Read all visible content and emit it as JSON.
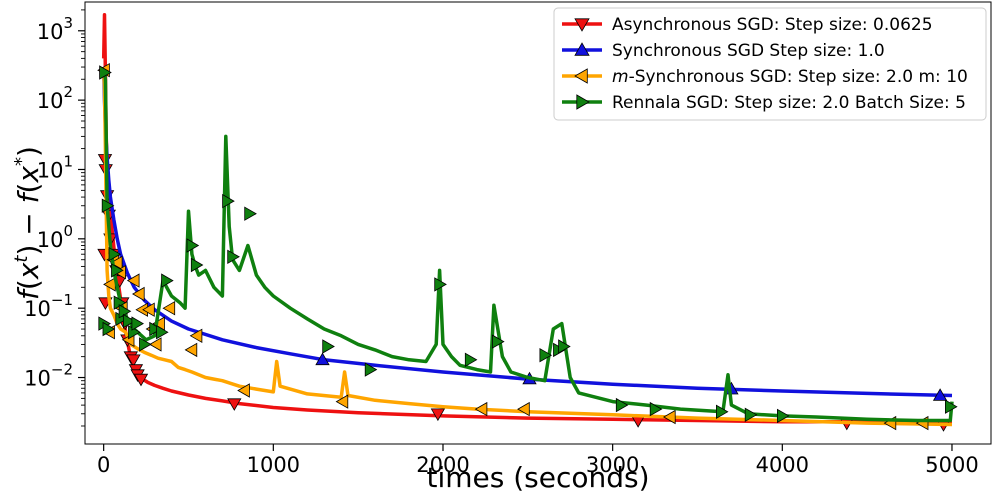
{
  "chart_data": {
    "type": "line",
    "title": "",
    "xlabel": "times (seconds)",
    "ylabel": "f(x^t) − f(x^*)",
    "xlim": [
      -110,
      5230
    ],
    "ylim": [
      0.0011,
      2600
    ],
    "yscale": "log",
    "grid": false,
    "legend_position": "top-right",
    "x_ticks": [
      {
        "value": 0,
        "label": "0"
      },
      {
        "value": 1000,
        "label": "1000"
      },
      {
        "value": 2000,
        "label": "2000"
      },
      {
        "value": 3000,
        "label": "3000"
      },
      {
        "value": 4000,
        "label": "4000"
      },
      {
        "value": 5000,
        "label": "5000"
      }
    ],
    "y_ticks": [
      {
        "value": 0.01,
        "base": "10",
        "exp": "−2"
      },
      {
        "value": 0.1,
        "base": "10",
        "exp": "−1"
      },
      {
        "value": 1,
        "base": "10",
        "exp": "0"
      },
      {
        "value": 10,
        "base": "10",
        "exp": "1"
      },
      {
        "value": 100,
        "base": "10",
        "exp": "2"
      },
      {
        "value": 1000,
        "base": "10",
        "exp": "3"
      }
    ],
    "series": [
      {
        "name": "Asynchronous SGD: Step size: 0.0625",
        "color": "#ee1111",
        "marker": "triangle-down",
        "x": [
          0,
          5,
          10,
          15,
          20,
          30,
          40,
          55,
          70,
          90,
          110,
          130,
          150,
          170,
          190,
          210,
          230,
          260,
          300,
          350,
          400,
          500,
          600,
          700,
          800,
          1000,
          1200,
          1500,
          2000,
          2500,
          3000,
          3500,
          4000,
          4500,
          5000
        ],
        "y": [
          400,
          1700,
          250,
          30,
          12,
          5,
          2.4,
          1.0,
          0.45,
          0.2,
          0.09,
          0.045,
          0.025,
          0.016,
          0.012,
          0.0105,
          0.0095,
          0.0085,
          0.0077,
          0.007,
          0.0064,
          0.0056,
          0.005,
          0.0046,
          0.0042,
          0.0037,
          0.0034,
          0.0031,
          0.0028,
          0.0026,
          0.0025,
          0.0024,
          0.0023,
          0.0023,
          0.0022
        ],
        "markers": [
          [
            5,
            0.6
          ],
          [
            8,
            14
          ],
          [
            10,
            0.12
          ],
          [
            12,
            10
          ],
          [
            20,
            4.2
          ],
          [
            30,
            2.2
          ],
          [
            40,
            1.0
          ],
          [
            55,
            0.6
          ],
          [
            75,
            0.35
          ],
          [
            95,
            0.25
          ],
          [
            110,
            0.12
          ],
          [
            125,
            0.06
          ],
          [
            140,
            0.035
          ],
          [
            160,
            0.02
          ],
          [
            175,
            0.018
          ],
          [
            190,
            0.013
          ],
          [
            200,
            0.011
          ],
          [
            220,
            0.0095
          ],
          [
            770,
            0.0042
          ],
          [
            1970,
            0.003
          ],
          [
            3150,
            0.0024
          ],
          [
            4380,
            0.0022
          ],
          [
            4950,
            0.0021
          ]
        ]
      },
      {
        "name": "Synchronous SGD Step size: 1.0",
        "color": "#1111dd",
        "marker": "triangle-up",
        "x": [
          0,
          5,
          10,
          20,
          30,
          40,
          60,
          80,
          100,
          140,
          180,
          240,
          300,
          400,
          500,
          700,
          900,
          1100,
          1300,
          1600,
          2000,
          2500,
          3000,
          3500,
          4000,
          4500,
          5000
        ],
        "y": [
          300,
          100,
          40,
          15,
          7,
          4,
          1.9,
          1.0,
          0.6,
          0.32,
          0.2,
          0.13,
          0.095,
          0.065,
          0.05,
          0.035,
          0.027,
          0.022,
          0.018,
          0.015,
          0.012,
          0.0095,
          0.008,
          0.007,
          0.0064,
          0.0059,
          0.0055
        ],
        "markers": [
          [
            1290,
            0.018
          ],
          [
            2510,
            0.0095
          ],
          [
            3700,
            0.0068
          ],
          [
            4930,
            0.0055
          ]
        ]
      },
      {
        "name": "m-Synchronous  SGD: Step size: 2.0 m: 10",
        "color": "#ffa500",
        "marker": "triangle-left",
        "x": [
          0,
          5,
          10,
          15,
          20,
          30,
          40,
          60,
          80,
          100,
          130,
          160,
          200,
          240,
          280,
          320,
          360,
          400,
          440,
          480,
          520,
          560,
          600,
          650,
          700,
          800,
          900,
          1000,
          1020,
          1040,
          1200,
          1400,
          1420,
          1440,
          1600,
          1800,
          2000,
          2200,
          2500,
          3000,
          3500,
          4000,
          4500,
          5000
        ],
        "y": [
          280,
          150,
          20,
          3,
          0.35,
          0.15,
          0.1,
          0.08,
          0.06,
          0.05,
          0.045,
          0.03,
          0.026,
          0.023,
          0.021,
          0.019,
          0.018,
          0.017,
          0.014,
          0.013,
          0.012,
          0.011,
          0.01,
          0.0095,
          0.009,
          0.0075,
          0.0068,
          0.0062,
          0.017,
          0.0075,
          0.0058,
          0.0052,
          0.012,
          0.0055,
          0.0047,
          0.0042,
          0.0038,
          0.0035,
          0.0032,
          0.0029,
          0.0026,
          0.0024,
          0.0022,
          0.0021
        ],
        "markers": [
          [
            5,
            270
          ],
          [
            35,
            0.045
          ],
          [
            40,
            0.22
          ],
          [
            60,
            0.5
          ],
          [
            80,
            0.45
          ],
          [
            100,
            0.33
          ],
          [
            110,
            0.1
          ],
          [
            150,
            0.035
          ],
          [
            180,
            0.25
          ],
          [
            210,
            0.16
          ],
          [
            230,
            0.095
          ],
          [
            270,
            0.095
          ],
          [
            290,
            0.05
          ],
          [
            310,
            0.03
          ],
          [
            330,
            0.06
          ],
          [
            390,
            0.1
          ],
          [
            520,
            0.025
          ],
          [
            550,
            0.04
          ],
          [
            830,
            0.0065
          ],
          [
            1410,
            0.0045
          ],
          [
            2230,
            0.0035
          ],
          [
            2480,
            0.0035
          ],
          [
            3340,
            0.0027
          ],
          [
            4640,
            0.0022
          ],
          [
            4830,
            0.0022
          ]
        ]
      },
      {
        "name": "Rennala SGD: Step size: 2.0 Batch Size: 5",
        "color": "#0f800f",
        "marker": "triangle-right",
        "x": [
          0,
          5,
          10,
          15,
          20,
          40,
          60,
          80,
          100,
          120,
          140,
          160,
          180,
          200,
          250,
          300,
          350,
          400,
          450,
          480,
          500,
          520,
          540,
          560,
          600,
          650,
          700,
          720,
          740,
          760,
          800,
          850,
          900,
          950,
          1000,
          1100,
          1200,
          1300,
          1400,
          1500,
          1600,
          1700,
          1800,
          1900,
          1960,
          1980,
          2000,
          2050,
          2100,
          2200,
          2280,
          2300,
          2350,
          2400,
          2500,
          2600,
          2650,
          2700,
          2750,
          2800,
          3000,
          3200,
          3400,
          3650,
          3680,
          3700,
          3800,
          4000,
          4200,
          4500,
          4800,
          4990,
          5000
        ],
        "y": [
          250,
          250,
          200,
          30,
          3,
          0.8,
          0.35,
          0.2,
          0.12,
          0.09,
          0.07,
          0.06,
          0.05,
          0.045,
          0.035,
          0.04,
          0.25,
          0.15,
          0.12,
          0.1,
          2.5,
          0.6,
          0.4,
          0.3,
          0.35,
          0.2,
          0.15,
          30,
          1.5,
          0.5,
          0.35,
          0.8,
          0.3,
          0.2,
          0.15,
          0.1,
          0.07,
          0.05,
          0.04,
          0.03,
          0.025,
          0.02,
          0.018,
          0.017,
          0.03,
          0.35,
          0.03,
          0.02,
          0.015,
          0.013,
          0.012,
          0.11,
          0.02,
          0.012,
          0.01,
          0.009,
          0.05,
          0.06,
          0.01,
          0.006,
          0.0045,
          0.004,
          0.0035,
          0.0032,
          0.011,
          0.004,
          0.003,
          0.0028,
          0.0027,
          0.0025,
          0.0024,
          0.0024,
          0.0045
        ],
        "markers": [
          [
            0,
            0.06
          ],
          [
            5,
            250
          ],
          [
            20,
            3
          ],
          [
            25,
            0.05
          ],
          [
            60,
            0.6
          ],
          [
            75,
            0.35
          ],
          [
            90,
            0.12
          ],
          [
            100,
            0.07
          ],
          [
            120,
            0.09
          ],
          [
            145,
            0.065
          ],
          [
            175,
            0.045
          ],
          [
            195,
            0.06
          ],
          [
            240,
            0.03
          ],
          [
            300,
            0.05
          ],
          [
            340,
            0.045
          ],
          [
            370,
            0.25
          ],
          [
            520,
            0.8
          ],
          [
            545,
            0.42
          ],
          [
            730,
            3.5
          ],
          [
            760,
            0.55
          ],
          [
            860,
            2.3
          ],
          [
            1320,
            0.028
          ],
          [
            1570,
            0.013
          ],
          [
            1980,
            0.22
          ],
          [
            2160,
            0.018
          ],
          [
            2320,
            0.033
          ],
          [
            2600,
            0.021
          ],
          [
            2680,
            0.025
          ],
          [
            2710,
            0.028
          ],
          [
            3050,
            0.004
          ],
          [
            3250,
            0.0035
          ],
          [
            3640,
            0.0032
          ],
          [
            3810,
            0.0029
          ],
          [
            4000,
            0.0028
          ],
          [
            4990,
            0.0038
          ]
        ]
      }
    ]
  }
}
